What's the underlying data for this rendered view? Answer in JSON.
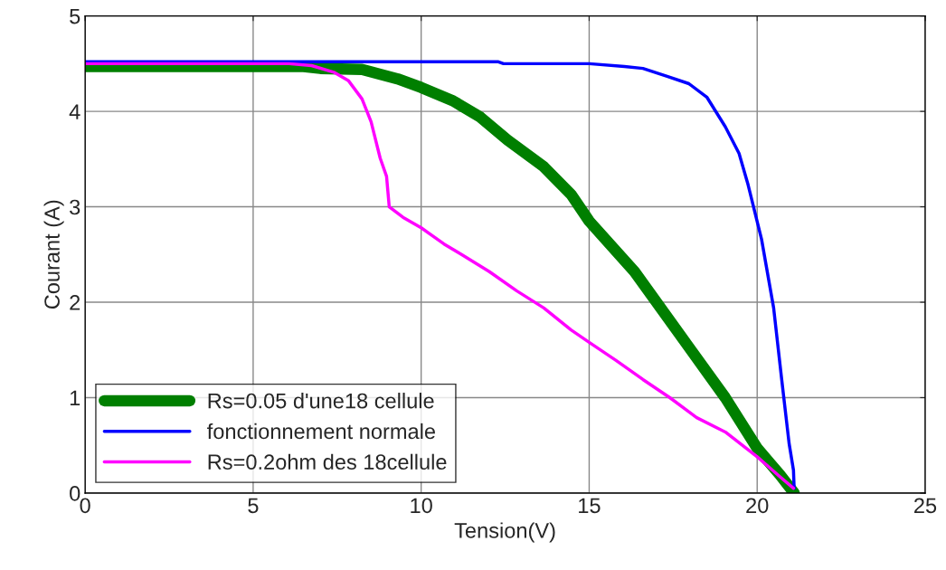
{
  "chart_data": {
    "type": "line",
    "xlabel": "Tension(V)",
    "ylabel": "Courant (A)",
    "xlim": [
      0,
      25
    ],
    "ylim": [
      0,
      5
    ],
    "xticks": [
      0,
      5,
      10,
      15,
      20,
      25
    ],
    "yticks": [
      0,
      1,
      2,
      3,
      4,
      5
    ],
    "grid": true,
    "legend": "bottom left",
    "series": [
      {
        "name": "Rs=0.05 d'une18 cellule",
        "color": "#007f00",
        "x": [
          0,
          6.5,
          7.0,
          8.24,
          9.3,
          10,
          10.95,
          11.76,
          12.57,
          13.65,
          14.46,
          15,
          16.35,
          17.7,
          19.05,
          20,
          20.68,
          21.1
        ],
        "values": [
          4.47,
          4.47,
          4.45,
          4.44,
          4.34,
          4.25,
          4.11,
          3.94,
          3.7,
          3.42,
          3.13,
          2.85,
          2.32,
          1.66,
          1.0,
          0.47,
          0.19,
          0.0
        ]
      },
      {
        "name": "fonctionnement normale",
        "color": "#0000ff",
        "x": [
          0,
          12.3,
          12.45,
          15,
          16.05,
          16.6,
          17.3,
          17.97,
          18.5,
          19.05,
          19.46,
          19.73,
          20.13,
          20.49,
          20.73,
          20.95,
          21.08,
          21.1
        ],
        "values": [
          4.52,
          4.52,
          4.5,
          4.5,
          4.47,
          4.45,
          4.37,
          4.29,
          4.15,
          3.84,
          3.56,
          3.23,
          2.66,
          1.94,
          1.19,
          0.52,
          0.24,
          0.05
        ]
      },
      {
        "name": "Rs=0.2ohm des 18cellule",
        "color": "#ff00ff",
        "x": [
          0,
          6.07,
          6.74,
          7.4,
          7.84,
          8.24,
          8.51,
          8.78,
          8.97,
          9.05,
          9.46,
          10,
          10.68,
          11.2,
          12.03,
          12.84,
          13.65,
          14.46,
          15,
          15.8,
          16.6,
          17.4,
          18.2,
          19.05,
          20,
          20.68,
          21.08
        ],
        "values": [
          4.5,
          4.5,
          4.48,
          4.41,
          4.32,
          4.13,
          3.89,
          3.51,
          3.32,
          3.0,
          2.89,
          2.78,
          2.61,
          2.5,
          2.32,
          2.12,
          1.94,
          1.71,
          1.58,
          1.39,
          1.19,
          1.0,
          0.79,
          0.64,
          0.38,
          0.17,
          0.05
        ]
      }
    ]
  }
}
